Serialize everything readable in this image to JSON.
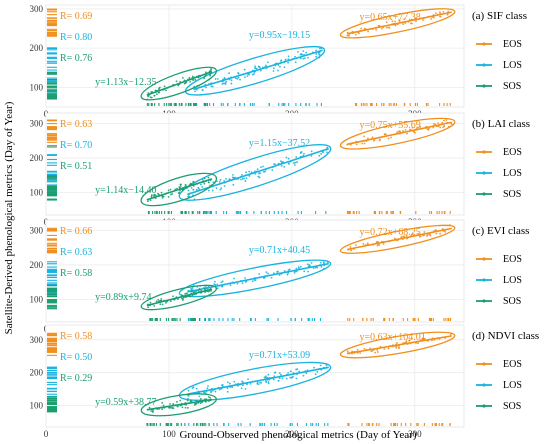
{
  "figure": {
    "xlabel": "Ground-Observed phenological metrics (Day of Year)",
    "ylabel": "Satellite-Derived phenological metrics (Day of Year)"
  },
  "legend": {
    "entries": [
      {
        "key": "EOS",
        "label": "EOS",
        "color": "#f28e1c"
      },
      {
        "key": "LOS",
        "label": "LOS",
        "color": "#19b3e0"
      },
      {
        "key": "SOS",
        "label": "SOS",
        "color": "#1b9e6f"
      }
    ]
  },
  "chart_data": [
    {
      "type": "scatter",
      "title": "(a) SIF class",
      "xlim": [
        0,
        340
      ],
      "ylim": [
        50,
        310
      ],
      "xticks": [
        0,
        100,
        200,
        300
      ],
      "yticks": [
        100,
        200,
        300
      ],
      "grid": true,
      "series": [
        {
          "name": "EOS",
          "color": "#f28e1c",
          "r_text": "R= 0.69",
          "eq_text": "y=0.65x+77.38",
          "slope": 0.65,
          "intercept": 77.38,
          "x_range": [
            245,
            330
          ],
          "x_center": 286,
          "spread": 12
        },
        {
          "name": "LOS",
          "color": "#19b3e0",
          "r_text": "R= 0.80",
          "eq_text": "y=0.95x−19.15",
          "slope": 0.95,
          "intercept": -19.15,
          "x_range": [
            120,
            225
          ],
          "x_center": 170,
          "spread": 20
        },
        {
          "name": "SOS",
          "color": "#1b9e6f",
          "r_text": "R= 0.76",
          "eq_text": "y=1.13x−12.35",
          "slope": 1.13,
          "intercept": -12.35,
          "x_range": [
            82,
            135
          ],
          "x_center": 108,
          "spread": 14
        }
      ]
    },
    {
      "type": "scatter",
      "title": "(b) LAI class",
      "xlim": [
        0,
        340
      ],
      "ylim": [
        35,
        330
      ],
      "xticks": [
        0,
        100,
        200,
        300
      ],
      "yticks": [
        100,
        200,
        300
      ],
      "grid": true,
      "series": [
        {
          "name": "EOS",
          "color": "#f28e1c",
          "r_text": "R= 0.63",
          "eq_text": "y=0.75x+55.69",
          "slope": 0.75,
          "intercept": 55.69,
          "x_range": [
            245,
            330
          ],
          "x_center": 286,
          "spread": 16
        },
        {
          "name": "LOS",
          "color": "#19b3e0",
          "r_text": "R= 0.70",
          "eq_text": "y=1.15x−37.52",
          "slope": 1.15,
          "intercept": -37.52,
          "x_range": [
            115,
            230
          ],
          "x_center": 170,
          "spread": 26
        },
        {
          "name": "SOS",
          "color": "#1b9e6f",
          "r_text": "R= 0.51",
          "eq_text": "y=1.14x−14.40",
          "slope": 1.14,
          "intercept": -14.4,
          "x_range": [
            82,
            135
          ],
          "x_center": 108,
          "spread": 20
        }
      ]
    },
    {
      "type": "scatter",
      "title": "(c) EVI class",
      "xlim": [
        0,
        340
      ],
      "ylim": [
        35,
        330
      ],
      "xticks": [
        0,
        100,
        200,
        300
      ],
      "yticks": [
        100,
        200,
        300
      ],
      "grid": true,
      "series": [
        {
          "name": "EOS",
          "color": "#f28e1c",
          "r_text": "R= 0.66",
          "eq_text": "y=0.72x+68.25",
          "slope": 0.72,
          "intercept": 68.25,
          "x_range": [
            245,
            330
          ],
          "x_center": 286,
          "spread": 12
        },
        {
          "name": "LOS",
          "color": "#19b3e0",
          "r_text": "R= 0.63",
          "eq_text": "y=0.71x+40.45",
          "slope": 0.71,
          "intercept": 40.45,
          "x_range": [
            115,
            230
          ],
          "x_center": 170,
          "spread": 18
        },
        {
          "name": "SOS",
          "color": "#1b9e6f",
          "r_text": "R= 0.58",
          "eq_text": "y=0.89x+9.74",
          "slope": 0.89,
          "intercept": 9.74,
          "x_range": [
            82,
            135
          ],
          "x_center": 108,
          "spread": 12
        }
      ]
    },
    {
      "type": "scatter",
      "title": "(d) NDVI class",
      "xlim": [
        0,
        340
      ],
      "ylim": [
        35,
        345
      ],
      "xticks": [
        0,
        100,
        200,
        300
      ],
      "yticks": [
        100,
        200,
        300
      ],
      "grid": true,
      "series": [
        {
          "name": "EOS",
          "color": "#f28e1c",
          "r_text": "R= 0.58",
          "eq_text": "y=0.63x+104.01",
          "slope": 0.63,
          "intercept": 104.01,
          "x_range": [
            245,
            330
          ],
          "x_center": 286,
          "spread": 14
        },
        {
          "name": "LOS",
          "color": "#19b3e0",
          "r_text": "R= 0.50",
          "eq_text": "y=0.71x+53.09",
          "slope": 0.71,
          "intercept": 53.09,
          "x_range": [
            115,
            230
          ],
          "x_center": 170,
          "spread": 24
        },
        {
          "name": "SOS",
          "color": "#1b9e6f",
          "r_text": "R= 0.29",
          "eq_text": "y=0.59x+38.77",
          "slope": 0.59,
          "intercept": 38.77,
          "x_range": [
            82,
            135
          ],
          "x_center": 108,
          "spread": 16
        }
      ]
    }
  ]
}
